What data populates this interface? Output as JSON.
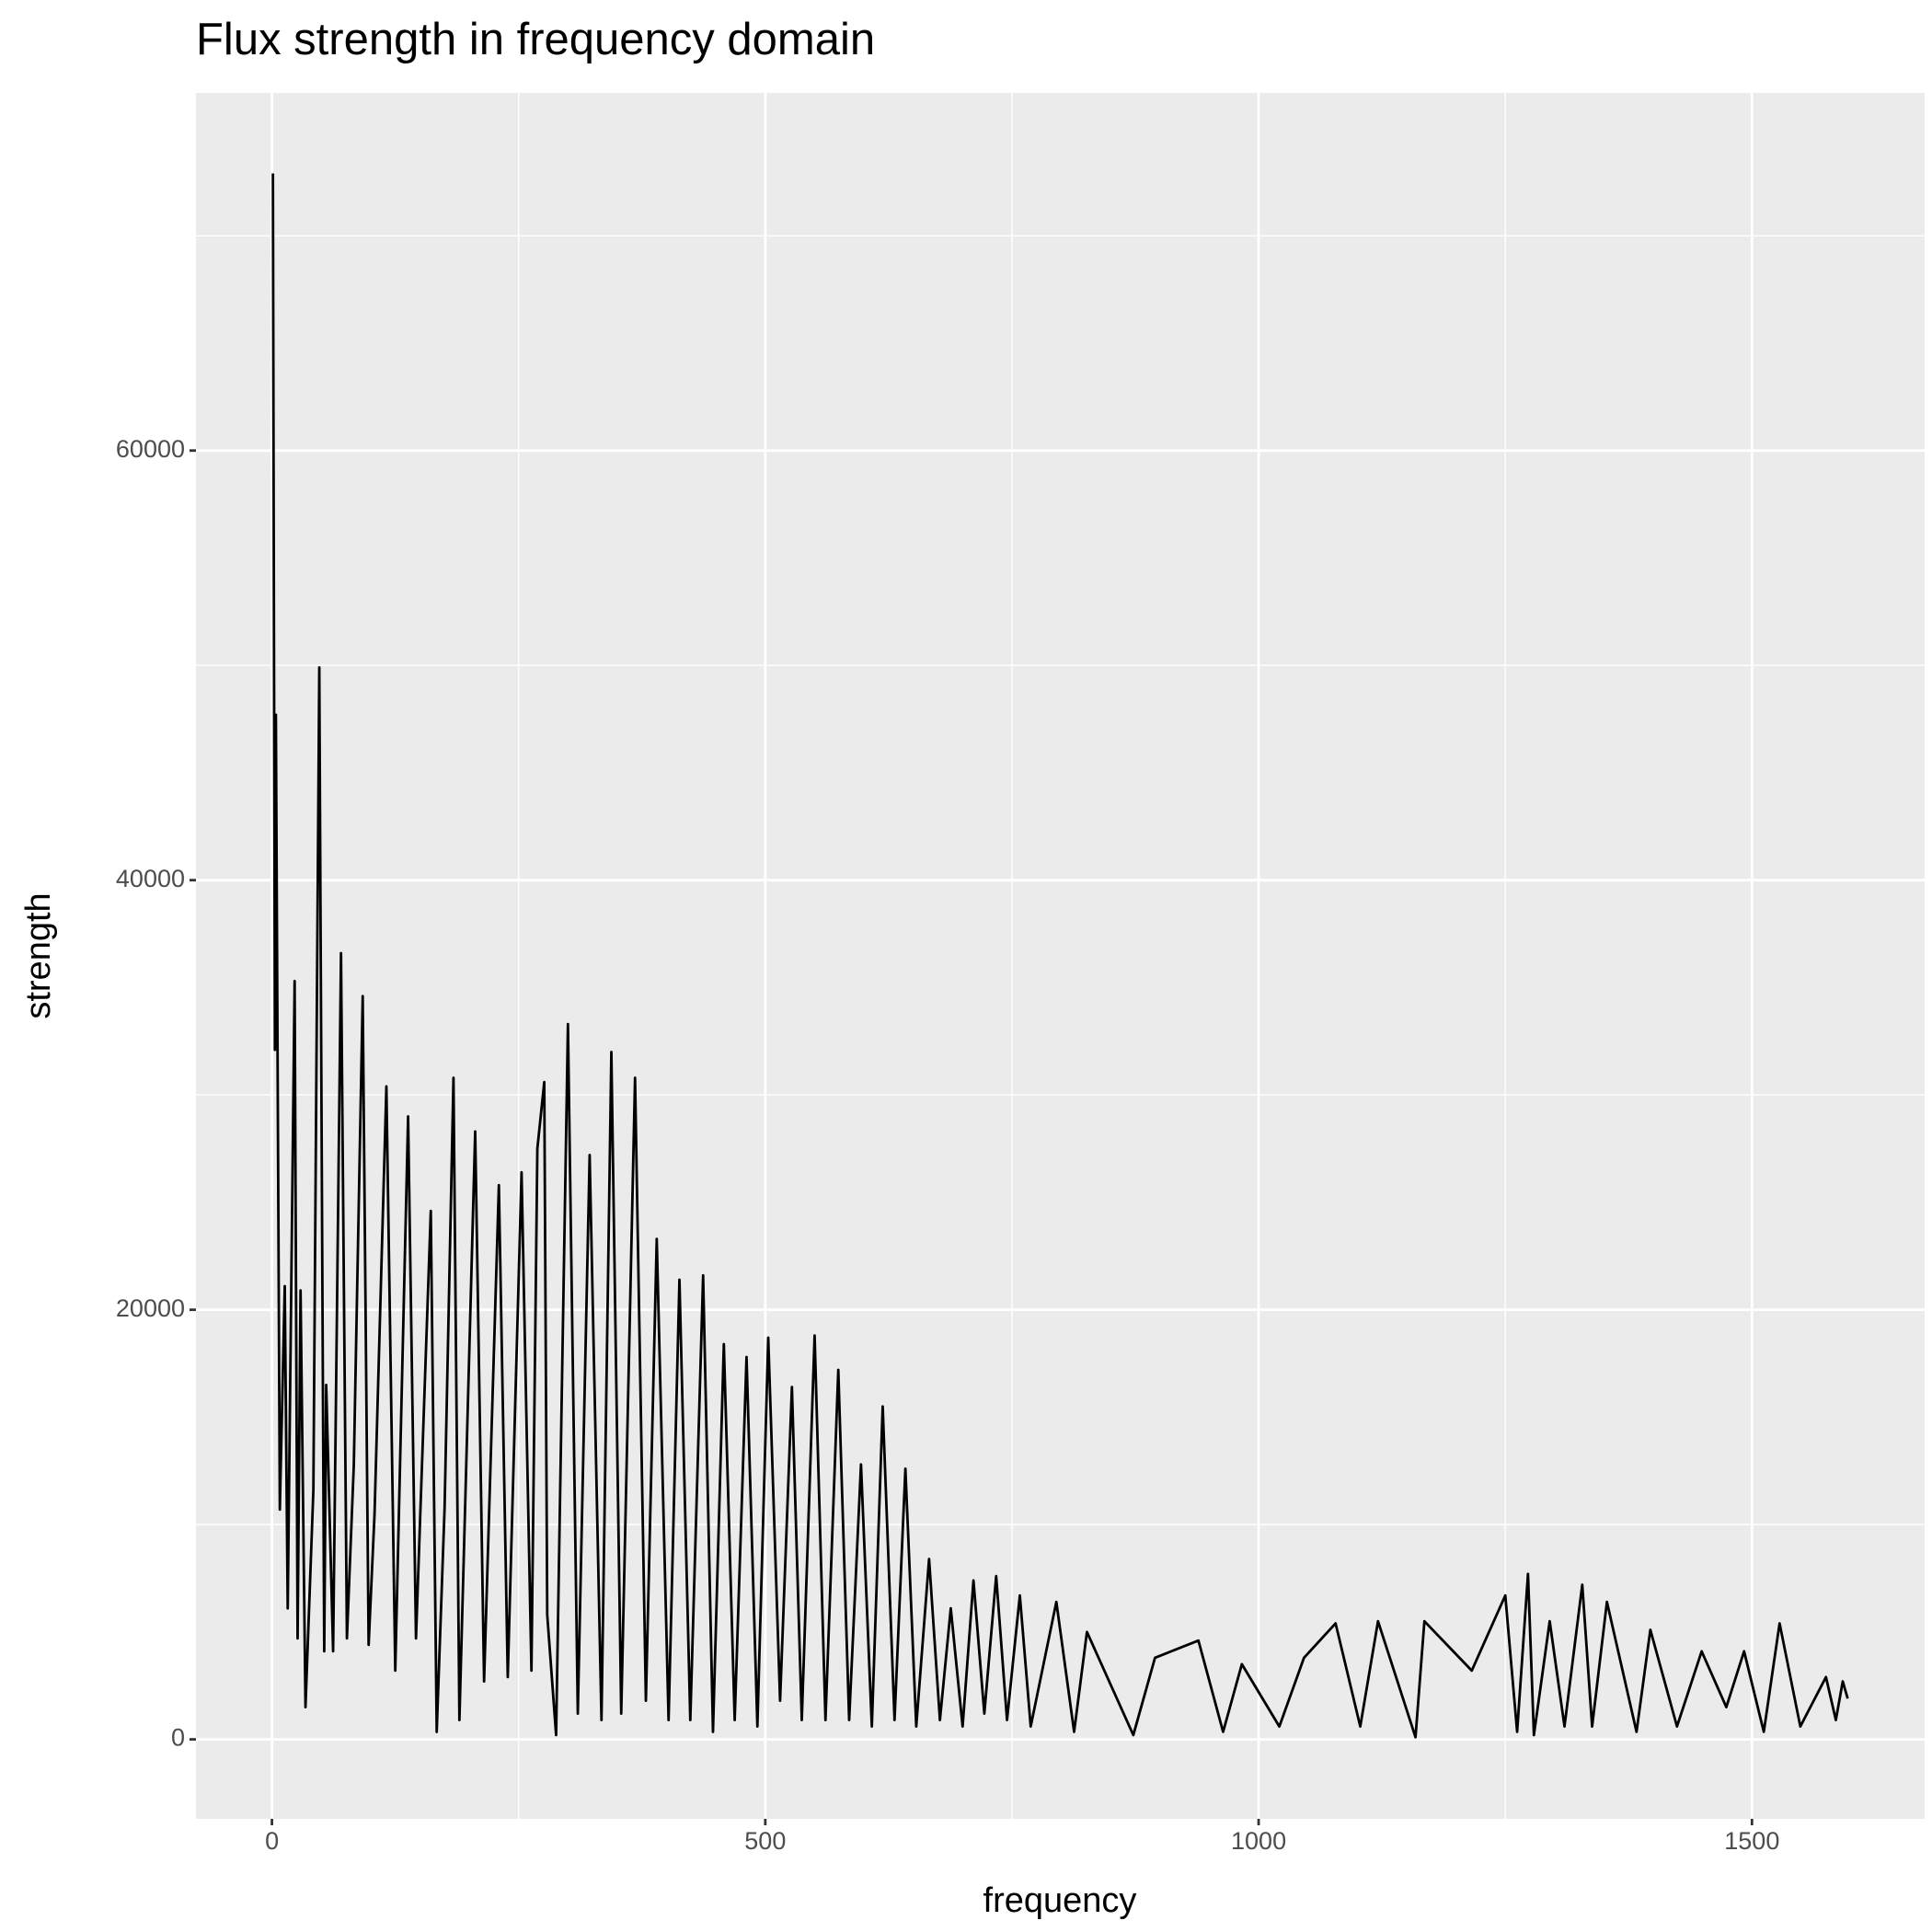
{
  "chart_data": {
    "type": "line",
    "title": "Flux strength in frequency domain",
    "x_label": "frequency",
    "y_label": "strength",
    "x": [
      1,
      3,
      4,
      8,
      13,
      16,
      23,
      26,
      29,
      34,
      42,
      48,
      53,
      55,
      62,
      70,
      76,
      83,
      92,
      98,
      104,
      116,
      125,
      138,
      146,
      161,
      167,
      175,
      184,
      190,
      206,
      215,
      230,
      239,
      253,
      263,
      269,
      276,
      279,
      288,
      300,
      310,
      322,
      334,
      344,
      354,
      368,
      379,
      390,
      402,
      413,
      424,
      437,
      447,
      458,
      469,
      481,
      492,
      503,
      515,
      527,
      537,
      550,
      561,
      574,
      585,
      597,
      608,
      619,
      631,
      642,
      653,
      666,
      677,
      688,
      700,
      711,
      722,
      734,
      745,
      758,
      769,
      795,
      813,
      826,
      873,
      895,
      939,
      964,
      983,
      1021,
      1046,
      1078,
      1103,
      1121,
      1159,
      1168,
      1216,
      1250,
      1262,
      1273,
      1279,
      1295,
      1310,
      1328,
      1338,
      1353,
      1383,
      1397,
      1424,
      1449,
      1474,
      1492,
      1512,
      1528,
      1549,
      1575,
      1585,
      1592,
      1597
    ],
    "values": [
      72900,
      32100,
      47700,
      10700,
      21100,
      6100,
      35300,
      4700,
      20900,
      1500,
      11600,
      49900,
      4100,
      16500,
      4100,
      36600,
      4700,
      12800,
      34600,
      4400,
      10500,
      30400,
      3200,
      29000,
      4700,
      24600,
      350,
      10800,
      30800,
      900,
      28300,
      2700,
      25800,
      2900,
      26400,
      3200,
      27500,
      30600,
      5800,
      200,
      33300,
      1200,
      27200,
      900,
      32000,
      1200,
      30800,
      1800,
      23300,
      900,
      21400,
      900,
      21600,
      350,
      18400,
      900,
      17800,
      600,
      18700,
      1800,
      16400,
      900,
      18800,
      900,
      17200,
      900,
      12800,
      600,
      15500,
      900,
      12600,
      600,
      8400,
      900,
      6100,
      600,
      7400,
      1200,
      7600,
      900,
      6700,
      600,
      6400,
      350,
      5000,
      200,
      3800,
      4600,
      350,
      3500,
      600,
      3800,
      5400,
      600,
      5500,
      100,
      5500,
      3200,
      6700,
      350,
      7700,
      200,
      5500,
      600,
      7200,
      600,
      6400,
      350,
      5100,
      600,
      4100,
      1500,
      4100,
      350,
      5400,
      600,
      2900,
      900,
      2700,
      1900
    ],
    "color": "#000000",
    "xlim": [
      -77,
      1675
    ],
    "ylim": [
      -3700,
      76650
    ],
    "xticks": [
      0,
      500,
      1000,
      1500
    ],
    "yticks": [
      0,
      20000,
      40000,
      60000
    ],
    "x_minor_grid": [
      250,
      750,
      1250
    ],
    "y_minor_grid": [
      10000,
      30000,
      50000,
      70000
    ],
    "grid": true
  }
}
